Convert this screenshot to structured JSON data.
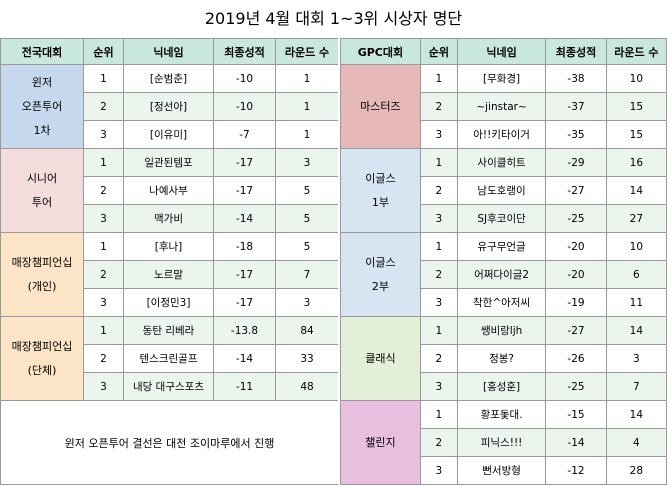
{
  "title": "2019년 4월 대회 1~3위 시상자 명단",
  "colors": {
    "header_bg": "#c9e8dd",
    "stripe_bg": "#ecf4ee",
    "winter_open": "#c5d8ee",
    "senior": "#f2dcdc",
    "store_champ": "#fce5c6",
    "masters": "#e6b8b8",
    "eagles": "#d7e4f2",
    "classic": "#e3efd6",
    "challenge": "#e9bfe0"
  },
  "left": {
    "headers": [
      "전국대회",
      "순위",
      "닉네임",
      "최종성적",
      "라운드 수"
    ],
    "groups": [
      {
        "name_lines": [
          "윈저",
          "오픈투어",
          "1차"
        ],
        "rows": [
          {
            "rank": "1",
            "nick": "[순범춘]",
            "score": "-10",
            "rounds": "1"
          },
          {
            "rank": "2",
            "nick": "[정선아]",
            "score": "-10",
            "rounds": "1"
          },
          {
            "rank": "3",
            "nick": "[이유미]",
            "score": "-7",
            "rounds": "1"
          }
        ]
      },
      {
        "name_lines": [
          "시니어",
          "투어"
        ],
        "rows": [
          {
            "rank": "1",
            "nick": "일관된템포",
            "score": "-17",
            "rounds": "3"
          },
          {
            "rank": "2",
            "nick": "나예사부",
            "score": "-17",
            "rounds": "5"
          },
          {
            "rank": "3",
            "nick": "맥가비",
            "score": "-14",
            "rounds": "5"
          }
        ]
      },
      {
        "name_lines": [
          "매장챔피언십",
          "(개인)"
        ],
        "rows": [
          {
            "rank": "1",
            "nick": "[후나]",
            "score": "-18",
            "rounds": "5"
          },
          {
            "rank": "2",
            "nick": "노르말",
            "score": "-17",
            "rounds": "7"
          },
          {
            "rank": "3",
            "nick": "[이정민3]",
            "score": "-17",
            "rounds": "3"
          }
        ]
      },
      {
        "name_lines": [
          "매장챔피언십",
          "(단체)"
        ],
        "rows": [
          {
            "rank": "1",
            "nick": "동탄 리베라",
            "score": "-13.8",
            "rounds": "84"
          },
          {
            "rank": "2",
            "nick": "텐스크린골프",
            "score": "-14",
            "rounds": "33"
          },
          {
            "rank": "3",
            "nick": "내당 대구스포츠",
            "score": "-11",
            "rounds": "48"
          }
        ]
      }
    ],
    "note": "윈저 오픈투어 결선은 대전 조이마루에서 진행"
  },
  "right": {
    "headers": [
      "GPC대회",
      "순위",
      "닉네임",
      "최종성적",
      "라운드 수"
    ],
    "groups": [
      {
        "name_lines": [
          "마스터즈"
        ],
        "rows": [
          {
            "rank": "1",
            "nick": "[무화경]",
            "score": "-38",
            "rounds": "10"
          },
          {
            "rank": "2",
            "nick": "~jinstar~",
            "score": "-37",
            "rounds": "15"
          },
          {
            "rank": "3",
            "nick": "아!!키타이거",
            "score": "-35",
            "rounds": "15"
          }
        ]
      },
      {
        "name_lines": [
          "이글스",
          "1부"
        ],
        "rows": [
          {
            "rank": "1",
            "nick": "사이클히트",
            "score": "-29",
            "rounds": "16"
          },
          {
            "rank": "2",
            "nick": "남도호랭이",
            "score": "-27",
            "rounds": "14"
          },
          {
            "rank": "3",
            "nick": "SJ후코이단",
            "score": "-25",
            "rounds": "27"
          }
        ]
      },
      {
        "name_lines": [
          "이글스",
          "2부"
        ],
        "rows": [
          {
            "rank": "1",
            "nick": "유구무언글",
            "score": "-20",
            "rounds": "10"
          },
          {
            "rank": "2",
            "nick": "어쩌다이글2",
            "score": "-20",
            "rounds": "6"
          },
          {
            "rank": "3",
            "nick": "착한^아저씨",
            "score": "-19",
            "rounds": "11"
          }
        ]
      },
      {
        "name_lines": [
          "클래식"
        ],
        "rows": [
          {
            "rank": "1",
            "nick": "쌩비랑ljh",
            "score": "-27",
            "rounds": "14"
          },
          {
            "rank": "2",
            "nick": "정봉?",
            "score": "-26",
            "rounds": "3"
          },
          {
            "rank": "3",
            "nick": "[홍성훈]",
            "score": "-25",
            "rounds": "7"
          }
        ]
      },
      {
        "name_lines": [
          "챌린지"
        ],
        "rows": [
          {
            "rank": "1",
            "nick": "황포돛대.",
            "score": "-15",
            "rounds": "14"
          },
          {
            "rank": "2",
            "nick": "피닉스!!!",
            "score": "-14",
            "rounds": "4"
          },
          {
            "rank": "3",
            "nick": "뻔서방형",
            "score": "-12",
            "rounds": "28"
          }
        ]
      }
    ]
  }
}
